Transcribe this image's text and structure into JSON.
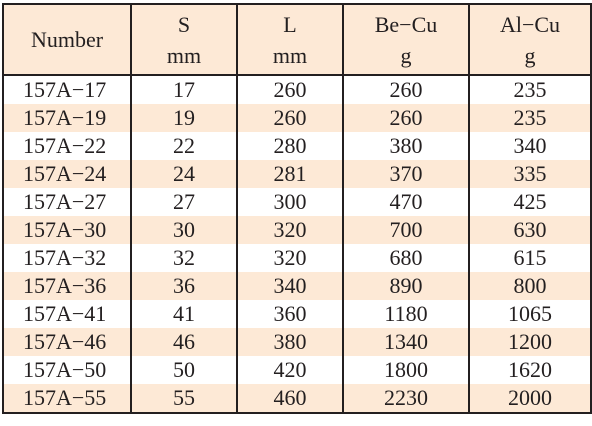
{
  "table": {
    "headers": [
      {
        "top": "Number",
        "bottom": ""
      },
      {
        "top": "S",
        "bottom": "mm"
      },
      {
        "top": "L",
        "bottom": "mm"
      },
      {
        "top": "Be−Cu",
        "bottom": "g"
      },
      {
        "top": "Al−Cu",
        "bottom": "g"
      }
    ],
    "rows": [
      [
        "157A−17",
        "17",
        "260",
        "260",
        "235"
      ],
      [
        "157A−19",
        "19",
        "260",
        "260",
        "235"
      ],
      [
        "157A−22",
        "22",
        "280",
        "380",
        "340"
      ],
      [
        "157A−24",
        "24",
        "281",
        "370",
        "335"
      ],
      [
        "157A−27",
        "27",
        "300",
        "470",
        "425"
      ],
      [
        "157A−30",
        "30",
        "320",
        "700",
        "630"
      ],
      [
        "157A−32",
        "32",
        "320",
        "680",
        "615"
      ],
      [
        "157A−36",
        "36",
        "340",
        "890",
        "800"
      ],
      [
        "157A−41",
        "41",
        "360",
        "1180",
        "1065"
      ],
      [
        "157A−46",
        "46",
        "380",
        "1340",
        "1200"
      ],
      [
        "157A−50",
        "50",
        "420",
        "1800",
        "1620"
      ],
      [
        "157A−55",
        "55",
        "460",
        "2230",
        "2000"
      ]
    ]
  },
  "colors": {
    "stripe": "#fde9d6",
    "text": "#231f20",
    "border": "#231f20"
  }
}
